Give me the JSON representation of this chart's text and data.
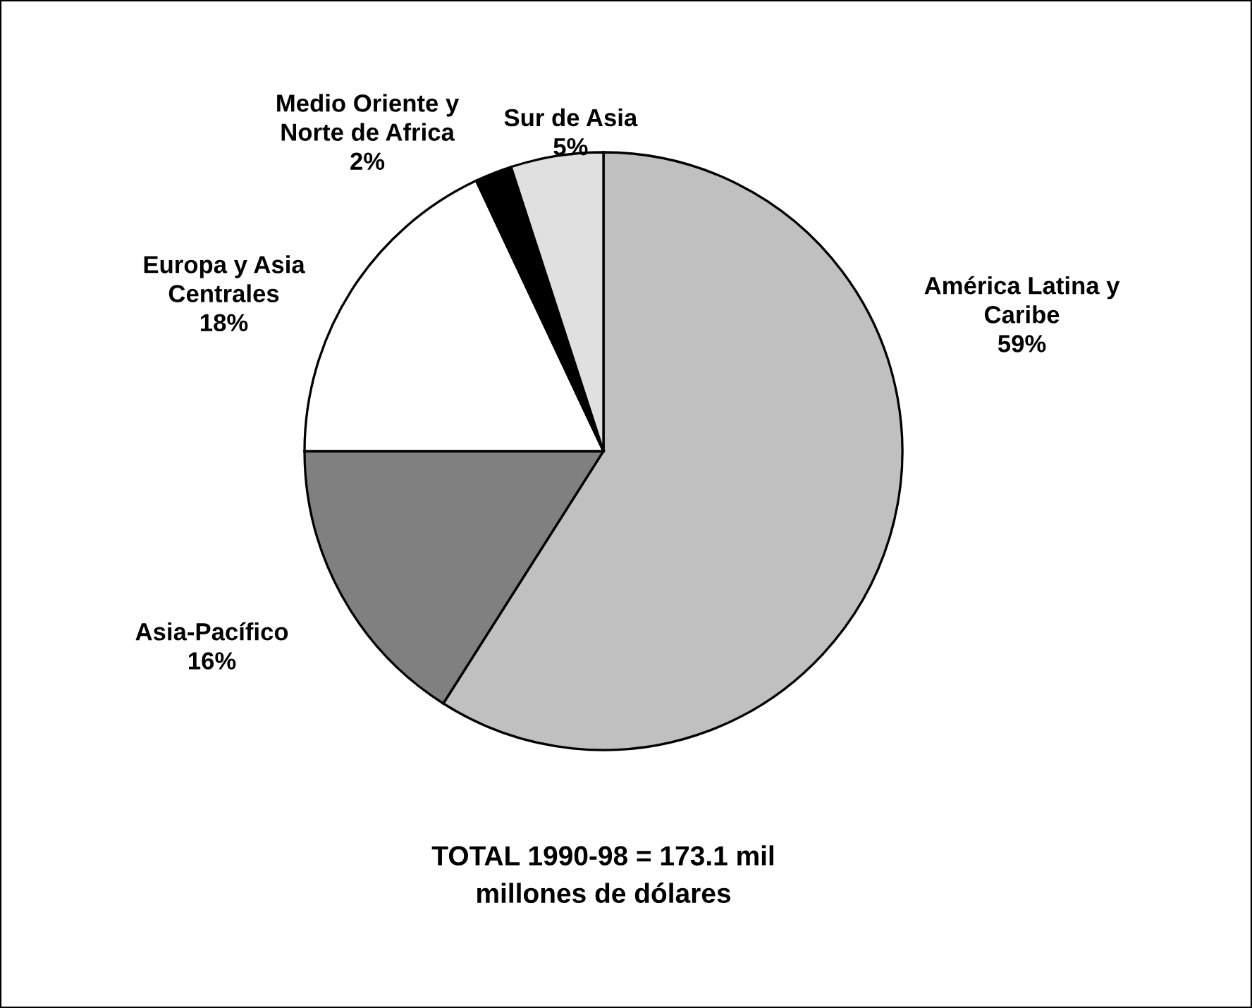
{
  "chart_data": {
    "type": "pie",
    "categories": [
      "América Latina y\nCaribe",
      "Asia-Pacífico",
      "Europa y Asia\nCentrales",
      "Medio Oriente y\nNorte de Africa",
      "Sur de Asia"
    ],
    "values": [
      59,
      16,
      18,
      2,
      5
    ],
    "value_labels": [
      "59%",
      "16%",
      "18%",
      "2%",
      "5%"
    ],
    "colors": [
      "#c0c0c0",
      "#808080",
      "#ffffff",
      "#000000",
      "#e0e0e0"
    ],
    "annotations": [
      "TOTAL 1990-98 = 173.1 mil\nmillones de dólares"
    ]
  }
}
